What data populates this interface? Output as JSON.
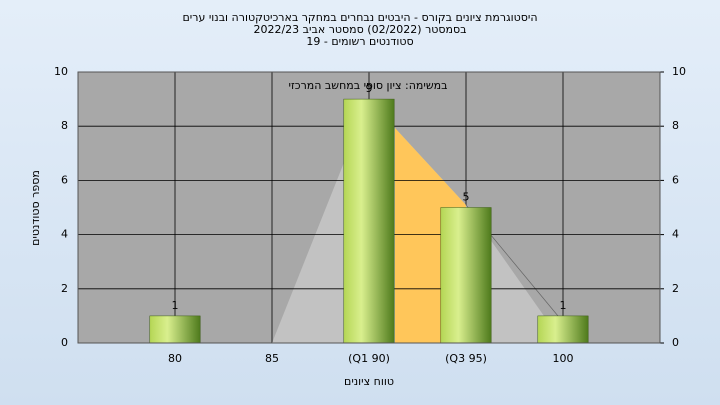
{
  "chart_data": {
    "type": "bar",
    "title": "היסטוגרמת ציונים בקורס - היבטים נבחרים במחקר בארכיטקטורה ובנוי ערים",
    "subtitle": "בסמסטר  (02/2022)  סמסטר אביב 2022/23",
    "subtitle2": "סטודנטים רשומים - 19",
    "annotation": "במשימה: ציון סופי במחשב המרכזי",
    "x_label": "טווח ציונים",
    "y_label": "מספר סטודנטים",
    "x": [
      80,
      85,
      90,
      95,
      100
    ],
    "values": [
      1,
      0,
      9,
      5,
      1
    ],
    "value_labels": [
      "1",
      null,
      "9",
      "5",
      "1"
    ],
    "xlim": [
      75,
      105
    ],
    "xticks": [
      80,
      85,
      {
        "value": 90,
        "label": "(Q1 90)"
      },
      {
        "value": 95,
        "label": "(Q3 95)"
      },
      100
    ],
    "ylim": [
      0,
      10
    ],
    "yticks": [
      0,
      2,
      4,
      6,
      8,
      10
    ],
    "y2lim": [
      0,
      10
    ],
    "y2ticks": [
      0,
      2,
      4,
      6,
      8,
      10
    ],
    "grid": true,
    "color": "#8fbc3a"
  }
}
